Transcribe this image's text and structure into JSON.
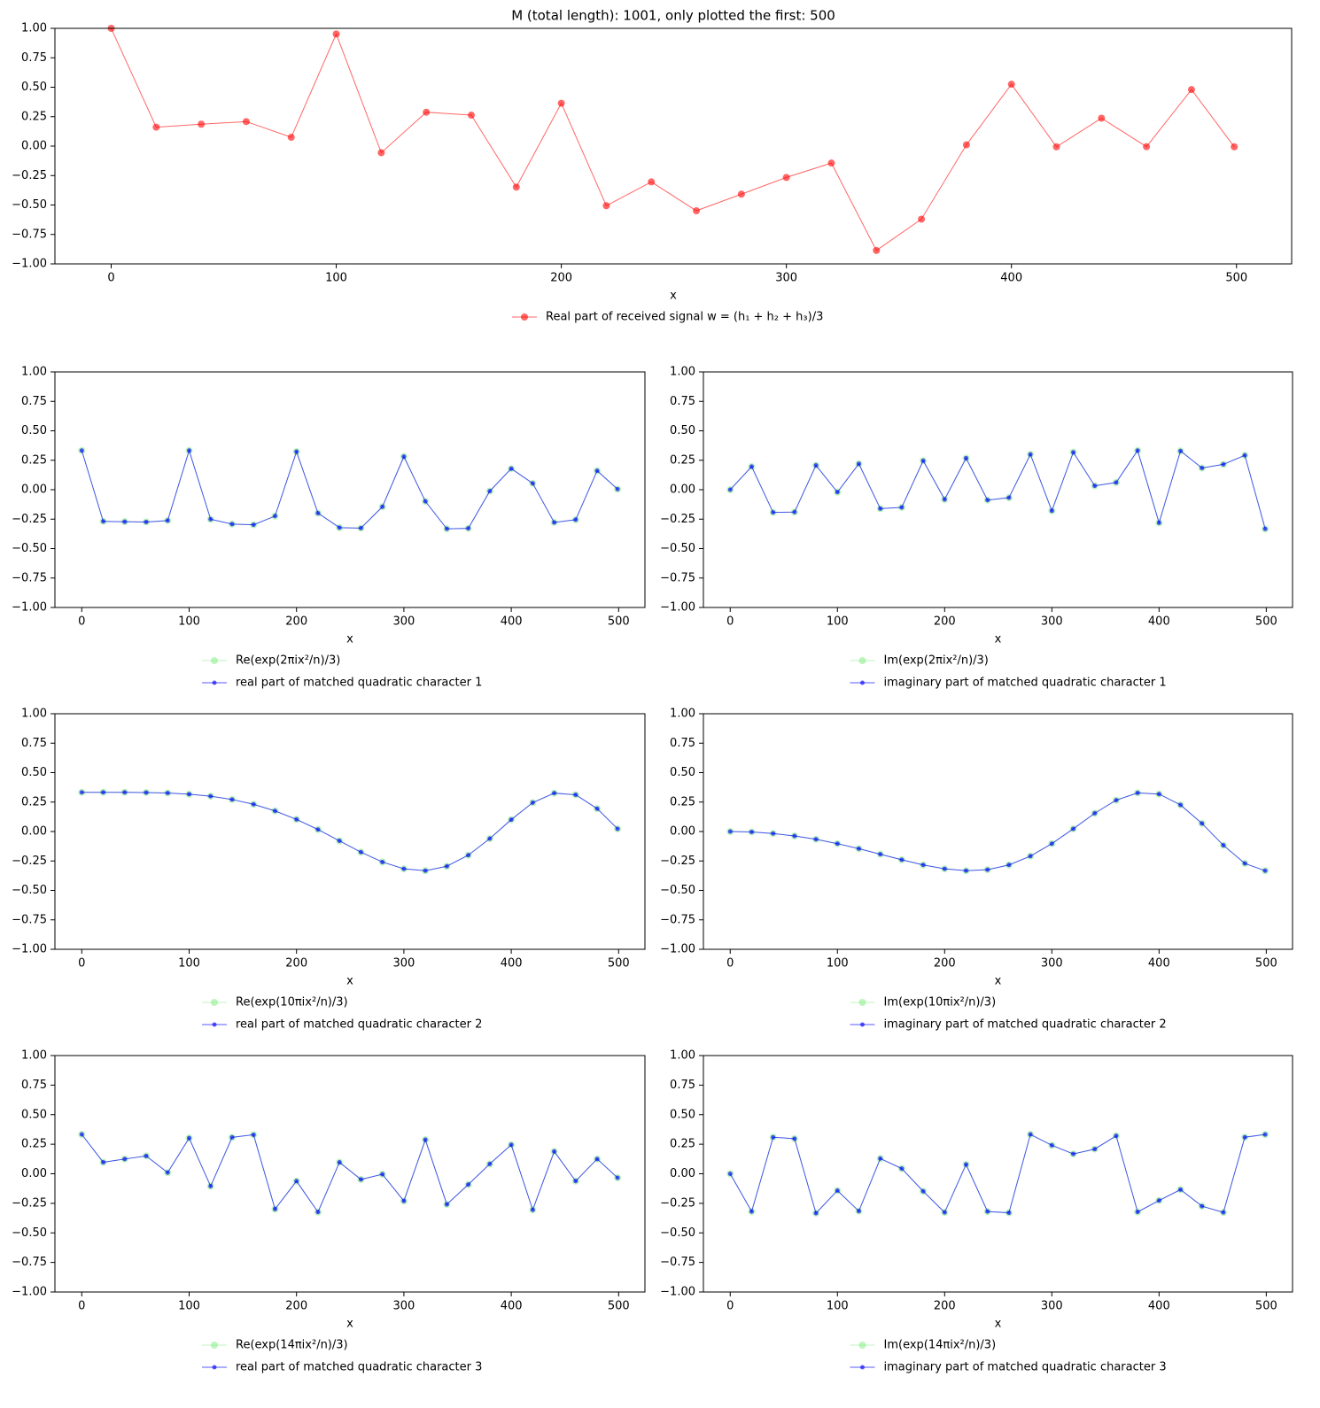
{
  "chart_data": [
    {
      "type": "line",
      "title": "M (total length): 1001, only plotted the first: 500",
      "xlabel": "x",
      "legend": "below",
      "x": [
        0,
        20,
        40,
        60,
        80,
        100,
        120,
        140,
        160,
        180,
        200,
        220,
        240,
        260,
        280,
        300,
        320,
        340,
        360,
        380,
        400,
        420,
        440,
        460,
        480,
        499
      ],
      "xlim": [
        -25,
        524.5
      ],
      "ylim": [
        -1,
        1
      ],
      "xticks": [
        0,
        100,
        200,
        300,
        400,
        500
      ],
      "yticks": [
        {
          "value": -1,
          "label": "−1.00"
        },
        {
          "value": -0.75,
          "label": "−0.75"
        },
        {
          "value": -0.5,
          "label": "−0.50"
        },
        {
          "value": -0.25,
          "label": "−0.25"
        },
        {
          "value": 0,
          "label": "0.00"
        },
        {
          "value": 0.25,
          "label": "0.25"
        },
        {
          "value": 0.5,
          "label": "0.50"
        },
        {
          "value": 0.75,
          "label": "0.75"
        },
        {
          "value": 1,
          "label": "1.00"
        }
      ],
      "series": [
        {
          "name": "Real part of received signal w = (h₁ + h₂ + h₃)/3",
          "color": "#ff0000",
          "values": [
            1.0,
            0.161,
            0.186,
            0.208,
            0.075,
            0.952,
            -0.056,
            0.288,
            0.263,
            -0.348,
            0.364,
            -0.506,
            -0.304,
            -0.549,
            -0.408,
            -0.266,
            -0.144,
            -0.886,
            -0.62,
            0.011,
            0.525,
            -0.006,
            0.237,
            -0.005,
            0.48,
            -0.006
          ]
        }
      ]
    },
    {
      "type": "line",
      "xlabel": "x",
      "legend": "below",
      "x": [
        0,
        20,
        40,
        60,
        80,
        100,
        120,
        140,
        160,
        180,
        200,
        220,
        240,
        260,
        280,
        300,
        320,
        340,
        360,
        380,
        400,
        420,
        440,
        460,
        480,
        499
      ],
      "xlim": [
        -25,
        524.5
      ],
      "ylim": [
        -1,
        1
      ],
      "xticks": [
        0,
        100,
        200,
        300,
        400,
        500
      ],
      "yticks": [
        {
          "value": -1,
          "label": "−1.00"
        },
        {
          "value": -0.75,
          "label": "−0.75"
        },
        {
          "value": -0.5,
          "label": "−0.50"
        },
        {
          "value": -0.25,
          "label": "−0.25"
        },
        {
          "value": 0,
          "label": "0.00"
        },
        {
          "value": 0.25,
          "label": "0.25"
        },
        {
          "value": 0.5,
          "label": "0.50"
        },
        {
          "value": 0.75,
          "label": "0.75"
        },
        {
          "value": 1,
          "label": "1.00"
        }
      ],
      "series": [
        {
          "name": "Re(exp(2πix²/n)/3)",
          "color": "#90ee90",
          "values": [
            0.333,
            -0.269,
            -0.272,
            -0.274,
            -0.262,
            0.333,
            -0.251,
            -0.292,
            -0.298,
            -0.224,
            0.323,
            -0.199,
            -0.322,
            -0.326,
            -0.145,
            0.281,
            -0.099,
            -0.332,
            -0.328,
            -0.012,
            0.179,
            0.054,
            -0.278,
            -0.255,
            0.161,
            0.005
          ]
        },
        {
          "name": "real part of matched quadratic character 1",
          "color": "#0000ff",
          "values": [
            0.333,
            -0.269,
            -0.272,
            -0.274,
            -0.262,
            0.333,
            -0.251,
            -0.292,
            -0.298,
            -0.224,
            0.323,
            -0.199,
            -0.322,
            -0.326,
            -0.145,
            0.281,
            -0.099,
            -0.332,
            -0.328,
            -0.012,
            0.179,
            0.054,
            -0.278,
            -0.255,
            0.161,
            0.005
          ]
        }
      ]
    },
    {
      "type": "line",
      "xlabel": "x",
      "legend": "below",
      "x": [
        0,
        20,
        40,
        60,
        80,
        100,
        120,
        140,
        160,
        180,
        200,
        220,
        240,
        260,
        280,
        300,
        320,
        340,
        360,
        380,
        400,
        420,
        440,
        460,
        480,
        499
      ],
      "xlim": [
        -25,
        524.5
      ],
      "ylim": [
        -1,
        1
      ],
      "xticks": [
        0,
        100,
        200,
        300,
        400,
        500
      ],
      "yticks": [
        {
          "value": -1,
          "label": "−1.00"
        },
        {
          "value": -0.75,
          "label": "−0.75"
        },
        {
          "value": -0.5,
          "label": "−0.50"
        },
        {
          "value": -0.25,
          "label": "−0.25"
        },
        {
          "value": 0,
          "label": "0.00"
        },
        {
          "value": 0.25,
          "label": "0.25"
        },
        {
          "value": 0.5,
          "label": "0.50"
        },
        {
          "value": 0.75,
          "label": "0.75"
        },
        {
          "value": 1,
          "label": "1.00"
        }
      ],
      "series": [
        {
          "name": "Im(exp(2πix²/n)/3)",
          "color": "#90ee90",
          "values": [
            0,
            0.196,
            -0.193,
            -0.19,
            0.207,
            -0.021,
            0.22,
            -0.161,
            -0.15,
            0.246,
            -0.083,
            0.268,
            -0.088,
            -0.068,
            0.3,
            -0.179,
            0.318,
            0.033,
            0.061,
            0.333,
            -0.281,
            0.329,
            0.184,
            0.215,
            0.292,
            -0.333
          ]
        },
        {
          "name": "imaginary part of matched quadratic character 1",
          "color": "#0000ff",
          "values": [
            0,
            0.196,
            -0.193,
            -0.19,
            0.207,
            -0.021,
            0.22,
            -0.161,
            -0.15,
            0.246,
            -0.083,
            0.268,
            -0.088,
            -0.068,
            0.3,
            -0.179,
            0.318,
            0.033,
            0.061,
            0.333,
            -0.281,
            0.329,
            0.184,
            0.215,
            0.292,
            -0.333
          ]
        }
      ]
    },
    {
      "type": "line",
      "xlabel": "x",
      "legend": "below",
      "x": [
        0,
        20,
        40,
        60,
        80,
        100,
        120,
        140,
        160,
        180,
        200,
        220,
        240,
        260,
        280,
        300,
        320,
        340,
        360,
        380,
        400,
        420,
        440,
        460,
        480,
        499
      ],
      "xlim": [
        -25,
        524.5
      ],
      "ylim": [
        -1,
        1
      ],
      "xticks": [
        0,
        100,
        200,
        300,
        400,
        500
      ],
      "yticks": [
        {
          "value": -1,
          "label": "−1.00"
        },
        {
          "value": -0.75,
          "label": "−0.75"
        },
        {
          "value": -0.5,
          "label": "−0.50"
        },
        {
          "value": -0.25,
          "label": "−0.25"
        },
        {
          "value": 0,
          "label": "0.00"
        },
        {
          "value": 0.25,
          "label": "0.25"
        },
        {
          "value": 0.5,
          "label": "0.50"
        },
        {
          "value": 0.75,
          "label": "0.75"
        },
        {
          "value": 1,
          "label": "1.00"
        }
      ],
      "series": [
        {
          "name": "Re(exp(10πix²/n)/3)",
          "color": "#90ee90",
          "values": [
            0.333,
            0.333,
            0.333,
            0.331,
            0.327,
            0.317,
            0.3,
            0.272,
            0.231,
            0.175,
            0.103,
            0.017,
            -0.079,
            -0.175,
            -0.259,
            -0.317,
            -0.333,
            -0.295,
            -0.201,
            -0.06,
            0.101,
            0.245,
            0.326,
            0.312,
            0.194,
            0.023
          ]
        },
        {
          "name": "real part of matched quadratic character 2",
          "color": "#0000ff",
          "values": [
            0.333,
            0.333,
            0.333,
            0.331,
            0.327,
            0.317,
            0.3,
            0.272,
            0.231,
            0.175,
            0.103,
            0.017,
            -0.079,
            -0.175,
            -0.259,
            -0.317,
            -0.333,
            -0.295,
            -0.201,
            -0.06,
            0.101,
            0.245,
            0.326,
            0.312,
            0.194,
            0.023
          ]
        }
      ]
    },
    {
      "type": "line",
      "xlabel": "x",
      "legend": "below",
      "x": [
        0,
        20,
        40,
        60,
        80,
        100,
        120,
        140,
        160,
        180,
        200,
        220,
        240,
        260,
        280,
        300,
        320,
        340,
        360,
        380,
        400,
        420,
        440,
        460,
        480,
        499
      ],
      "xlim": [
        -25,
        524.5
      ],
      "ylim": [
        -1,
        1
      ],
      "xticks": [
        0,
        100,
        200,
        300,
        400,
        500
      ],
      "yticks": [
        {
          "value": -1,
          "label": "−1.00"
        },
        {
          "value": -0.75,
          "label": "−0.75"
        },
        {
          "value": -0.5,
          "label": "−0.50"
        },
        {
          "value": -0.25,
          "label": "−0.25"
        },
        {
          "value": 0,
          "label": "0.00"
        },
        {
          "value": 0.25,
          "label": "0.25"
        },
        {
          "value": 0.5,
          "label": "0.50"
        },
        {
          "value": 0.75,
          "label": "0.75"
        },
        {
          "value": 1,
          "label": "1.00"
        }
      ],
      "series": [
        {
          "name": "Im(exp(10πix²/n)/3)",
          "color": "#90ee90",
          "values": [
            0,
            -0.004,
            -0.017,
            -0.038,
            -0.066,
            -0.103,
            -0.146,
            -0.193,
            -0.24,
            -0.284,
            -0.317,
            -0.333,
            -0.324,
            -0.284,
            -0.209,
            -0.103,
            0.023,
            0.155,
            0.266,
            0.328,
            0.318,
            0.226,
            0.069,
            -0.117,
            -0.271,
            -0.333
          ]
        },
        {
          "name": "imaginary part of matched quadratic character 2",
          "color": "#0000ff",
          "values": [
            0,
            -0.004,
            -0.017,
            -0.038,
            -0.066,
            -0.103,
            -0.146,
            -0.193,
            -0.24,
            -0.284,
            -0.317,
            -0.333,
            -0.324,
            -0.284,
            -0.209,
            -0.103,
            0.023,
            0.155,
            0.266,
            0.328,
            0.318,
            0.226,
            0.069,
            -0.117,
            -0.271,
            -0.333
          ]
        }
      ]
    },
    {
      "type": "line",
      "xlabel": "x",
      "legend": "below",
      "x": [
        0,
        20,
        40,
        60,
        80,
        100,
        120,
        140,
        160,
        180,
        200,
        220,
        240,
        260,
        280,
        300,
        320,
        340,
        360,
        380,
        400,
        420,
        440,
        460,
        480,
        499
      ],
      "xlim": [
        -25,
        524.5
      ],
      "ylim": [
        -1,
        1
      ],
      "xticks": [
        0,
        100,
        200,
        300,
        400,
        500
      ],
      "yticks": [
        {
          "value": -1,
          "label": "−1.00"
        },
        {
          "value": -0.75,
          "label": "−0.75"
        },
        {
          "value": -0.5,
          "label": "−0.50"
        },
        {
          "value": -0.25,
          "label": "−0.25"
        },
        {
          "value": 0,
          "label": "0.00"
        },
        {
          "value": 0.25,
          "label": "0.25"
        },
        {
          "value": 0.5,
          "label": "0.50"
        },
        {
          "value": 0.75,
          "label": "0.75"
        },
        {
          "value": 1,
          "label": "1.00"
        }
      ],
      "series": [
        {
          "name": "Re(exp(14πix²/n)/3)",
          "color": "#90ee90",
          "values": [
            0.333,
            0.097,
            0.125,
            0.151,
            0.01,
            0.302,
            -0.105,
            0.308,
            0.33,
            -0.299,
            -0.062,
            -0.324,
            0.097,
            -0.048,
            -0.004,
            -0.23,
            0.288,
            -0.259,
            -0.091,
            0.083,
            0.245,
            -0.305,
            0.189,
            -0.062,
            0.125,
            -0.034
          ]
        },
        {
          "name": "real part of matched quadratic character 3",
          "color": "#0000ff",
          "values": [
            0.333,
            0.097,
            0.125,
            0.151,
            0.01,
            0.302,
            -0.105,
            0.308,
            0.33,
            -0.299,
            -0.062,
            -0.324,
            0.097,
            -0.048,
            -0.004,
            -0.23,
            0.288,
            -0.259,
            -0.091,
            0.083,
            0.245,
            -0.305,
            0.189,
            -0.062,
            0.125,
            -0.034
          ]
        }
      ]
    },
    {
      "type": "line",
      "xlabel": "x",
      "legend": "below",
      "x": [
        0,
        20,
        40,
        60,
        80,
        100,
        120,
        140,
        160,
        180,
        200,
        220,
        240,
        260,
        280,
        300,
        320,
        340,
        360,
        380,
        400,
        420,
        440,
        460,
        480,
        499
      ],
      "xlim": [
        -25,
        524.5
      ],
      "ylim": [
        -1,
        1
      ],
      "xticks": [
        0,
        100,
        200,
        300,
        400,
        500
      ],
      "yticks": [
        {
          "value": -1,
          "label": "−1.00"
        },
        {
          "value": -0.75,
          "label": "−0.75"
        },
        {
          "value": -0.5,
          "label": "−0.50"
        },
        {
          "value": -0.25,
          "label": "−0.25"
        },
        {
          "value": 0,
          "label": "0.00"
        },
        {
          "value": 0.25,
          "label": "0.25"
        },
        {
          "value": 0.5,
          "label": "0.50"
        },
        {
          "value": 0.75,
          "label": "0.75"
        },
        {
          "value": 1,
          "label": "1.00"
        }
      ],
      "series": [
        {
          "name": "Im(exp(14πix²/n)/3)",
          "color": "#90ee90",
          "values": [
            0,
            -0.319,
            0.309,
            0.297,
            -0.333,
            -0.142,
            -0.316,
            0.129,
            0.044,
            -0.148,
            -0.327,
            0.079,
            -0.319,
            -0.33,
            0.333,
            0.241,
            0.168,
            0.209,
            0.321,
            -0.323,
            -0.226,
            -0.134,
            -0.274,
            -0.327,
            0.309,
            0.332
          ]
        },
        {
          "name": "imaginary part of matched quadratic character 3",
          "color": "#0000ff",
          "values": [
            0,
            -0.319,
            0.309,
            0.297,
            -0.333,
            -0.142,
            -0.316,
            0.129,
            0.044,
            -0.148,
            -0.327,
            0.079,
            -0.319,
            -0.33,
            0.333,
            0.241,
            0.168,
            0.209,
            0.321,
            -0.323,
            -0.226,
            -0.134,
            -0.274,
            -0.327,
            0.309,
            0.332
          ]
        }
      ]
    }
  ]
}
